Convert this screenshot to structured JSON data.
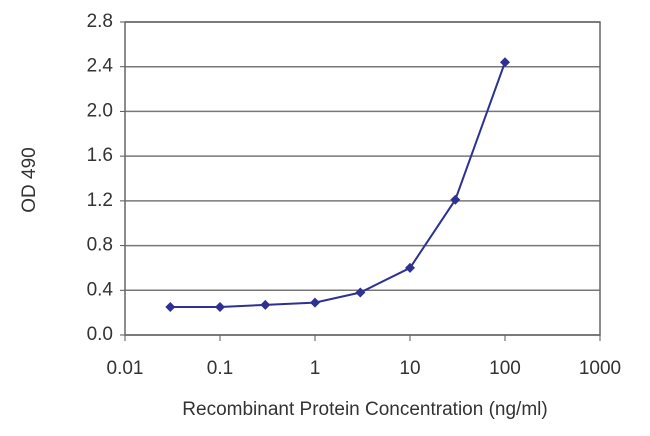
{
  "chart_data": {
    "type": "line",
    "x_label": "Recombinant Protein Concentration (ng/ml)",
    "y_label": "OD 490",
    "x": [
      0.03,
      0.1,
      0.3,
      1,
      3,
      10,
      30,
      100
    ],
    "values": [
      0.25,
      0.25,
      0.27,
      0.29,
      0.38,
      0.6,
      1.21,
      2.44
    ],
    "color": "#2e3192",
    "xscale": "log",
    "grid": true,
    "xlim": [
      0.01,
      1000
    ],
    "xticks": [
      0.01,
      0.1,
      1,
      10,
      100,
      1000
    ],
    "ylim": [
      0,
      2.8
    ],
    "yticks": [
      {
        "value": 0,
        "label": "0.0"
      },
      0.4,
      0.8,
      1.2,
      1.6,
      {
        "value": 2,
        "label": "2.0"
      },
      2.4,
      2.8
    ]
  }
}
